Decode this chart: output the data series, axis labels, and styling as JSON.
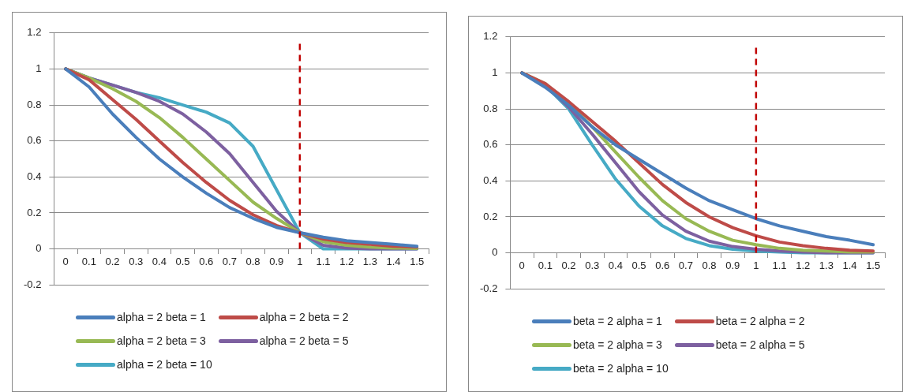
{
  "chart_data": [
    {
      "type": "line",
      "categories": [
        "0",
        "0.1",
        "0.2",
        "0.3",
        "0.4",
        "0.5",
        "0.6",
        "0.7",
        "0.8",
        "0.9",
        "1",
        "1.1",
        "1.2",
        "1.3",
        "1.4",
        "1.5"
      ],
      "ylim": [
        -0.2,
        1.2
      ],
      "yticks": [
        -0.2,
        0,
        0.2,
        0.4,
        0.6,
        0.8,
        1,
        1.2
      ],
      "grid": "y",
      "legend": "bottom",
      "marker": "none",
      "line_style": "solid",
      "ref_lines": [
        {
          "axis": "x",
          "value": "1",
          "color": "#c00000",
          "line_style": "dashed"
        }
      ],
      "series": [
        {
          "name": "alpha = 2 beta = 1",
          "color": "#4a7ebb",
          "values": [
            1,
            0.9,
            0.75,
            0.62,
            0.5,
            0.4,
            0.31,
            0.23,
            0.17,
            0.12,
            0.09,
            0.065,
            0.045,
            0.035,
            0.025,
            0.015
          ]
        },
        {
          "name": "alpha = 2 beta = 2",
          "color": "#be4b48",
          "values": [
            1,
            0.94,
            0.83,
            0.72,
            0.6,
            0.48,
            0.37,
            0.27,
            0.19,
            0.13,
            0.09,
            0.055,
            0.035,
            0.025,
            0.015,
            0.01
          ]
        },
        {
          "name": "alpha = 2 beta = 3",
          "color": "#98b954",
          "values": [
            1,
            0.95,
            0.89,
            0.82,
            0.73,
            0.62,
            0.5,
            0.38,
            0.26,
            0.17,
            0.09,
            0.04,
            0.02,
            0.01,
            0.005,
            0.003
          ]
        },
        {
          "name": "alpha = 2 beta = 5",
          "color": "#7d60a0",
          "values": [
            1,
            0.95,
            0.91,
            0.87,
            0.82,
            0.75,
            0.65,
            0.53,
            0.37,
            0.21,
            0.09,
            0.02,
            0.005,
            0,
            0,
            0
          ]
        },
        {
          "name": "alpha = 2 beta = 10",
          "color": "#46aac5",
          "values": [
            1,
            0.95,
            0.91,
            0.87,
            0.84,
            0.8,
            0.76,
            0.7,
            0.57,
            0.33,
            0.09,
            0,
            0,
            0,
            0,
            0
          ]
        }
      ]
    },
    {
      "type": "line",
      "categories": [
        "0",
        "0.1",
        "0.2",
        "0.3",
        "0.4",
        "0.5",
        "0.6",
        "0.7",
        "0.8",
        "0.9",
        "1",
        "1.1",
        "1.2",
        "1.3",
        "1.4",
        "1.5"
      ],
      "ylim": [
        -0.2,
        1.2
      ],
      "yticks": [
        -0.2,
        0,
        0.2,
        0.4,
        0.6,
        0.8,
        1,
        1.2
      ],
      "grid": "y",
      "legend": "bottom",
      "marker": "none",
      "line_style": "solid",
      "ref_lines": [
        {
          "axis": "x",
          "value": "1",
          "color": "#c00000",
          "line_style": "dashed"
        }
      ],
      "series": [
        {
          "name": "beta = 2 alpha = 1",
          "color": "#4a7ebb",
          "values": [
            1,
            0.92,
            0.82,
            0.7,
            0.6,
            0.52,
            0.44,
            0.36,
            0.29,
            0.24,
            0.19,
            0.15,
            0.12,
            0.09,
            0.07,
            0.045
          ]
        },
        {
          "name": "beta = 2 alpha = 2",
          "color": "#be4b48",
          "values": [
            1,
            0.94,
            0.84,
            0.73,
            0.62,
            0.5,
            0.38,
            0.28,
            0.2,
            0.14,
            0.095,
            0.06,
            0.04,
            0.025,
            0.015,
            0.01
          ]
        },
        {
          "name": "beta = 2 alpha = 3",
          "color": "#98b954",
          "values": [
            1,
            0.94,
            0.83,
            0.7,
            0.56,
            0.42,
            0.29,
            0.19,
            0.12,
            0.07,
            0.045,
            0.025,
            0.015,
            0.01,
            0.005,
            0.005
          ]
        },
        {
          "name": "beta = 2 alpha = 5",
          "color": "#7d60a0",
          "values": [
            1,
            0.93,
            0.81,
            0.66,
            0.5,
            0.34,
            0.21,
            0.12,
            0.065,
            0.035,
            0.02,
            0.01,
            0.005,
            0,
            0,
            0
          ]
        },
        {
          "name": "beta = 2 alpha = 10",
          "color": "#46aac5",
          "values": [
            1,
            0.93,
            0.8,
            0.6,
            0.41,
            0.26,
            0.15,
            0.08,
            0.04,
            0.02,
            0.01,
            0.005,
            0,
            0,
            0,
            0
          ]
        }
      ]
    }
  ]
}
